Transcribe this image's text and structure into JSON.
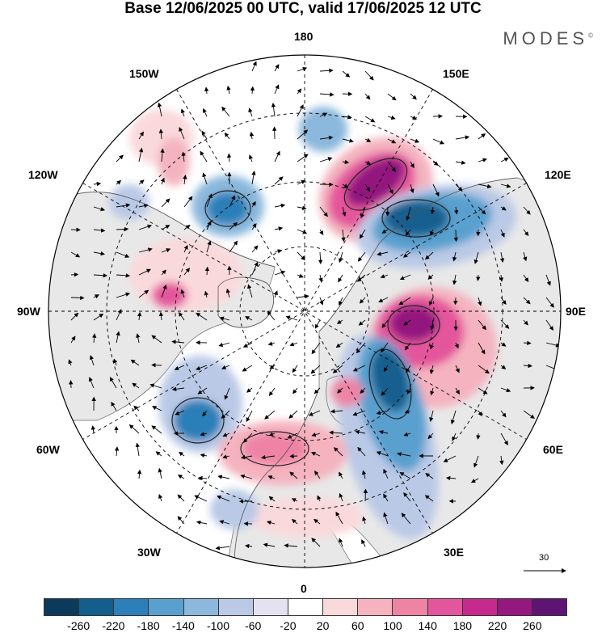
{
  "title": "Base 12/06/2025 00 UTC, valid 17/06/2025 12 UTC",
  "brand": "MODES",
  "brand_mark": "©",
  "longitude_labels": {
    "top": "180",
    "bottom": "0",
    "left": "90W",
    "right": "90E",
    "upper_left_outer": "150W",
    "upper_left_inner": "120W",
    "upper_right_outer": "150E",
    "upper_right_inner": "120E",
    "lower_left_inner": "60W",
    "lower_left_outer": "30W",
    "lower_right_inner": "60E",
    "lower_right_outer": "30E"
  },
  "vector_scale_label": "30",
  "colorbar": {
    "colors": [
      "#0b3a5c",
      "#145e8e",
      "#2c7fb8",
      "#5aa0cf",
      "#8bb8dc",
      "#bac9e6",
      "#e4e2f1",
      "#ffffff",
      "#fad9dc",
      "#f4b3bf",
      "#ee83a6",
      "#e4569b",
      "#c72a8e",
      "#93197f",
      "#5e1473"
    ],
    "ticks": [
      "-260",
      "-220",
      "-180",
      "-140",
      "-100",
      "-60",
      "-20",
      "20",
      "60",
      "100",
      "140",
      "180",
      "220",
      "260"
    ]
  },
  "anomaly_centers": [
    {
      "name": "east-siberia-positive",
      "value": 240
    },
    {
      "name": "central-siberia-negative",
      "value": -200
    },
    {
      "name": "west-siberia-positive",
      "value": 250
    },
    {
      "name": "european-russia-negative",
      "value": -200
    },
    {
      "name": "alaska-negative",
      "value": -160
    },
    {
      "name": "north-atlantic-negative",
      "value": -170
    },
    {
      "name": "western-europe-positive",
      "value": 130
    },
    {
      "name": "canada-positive",
      "value": 150
    }
  ]
}
